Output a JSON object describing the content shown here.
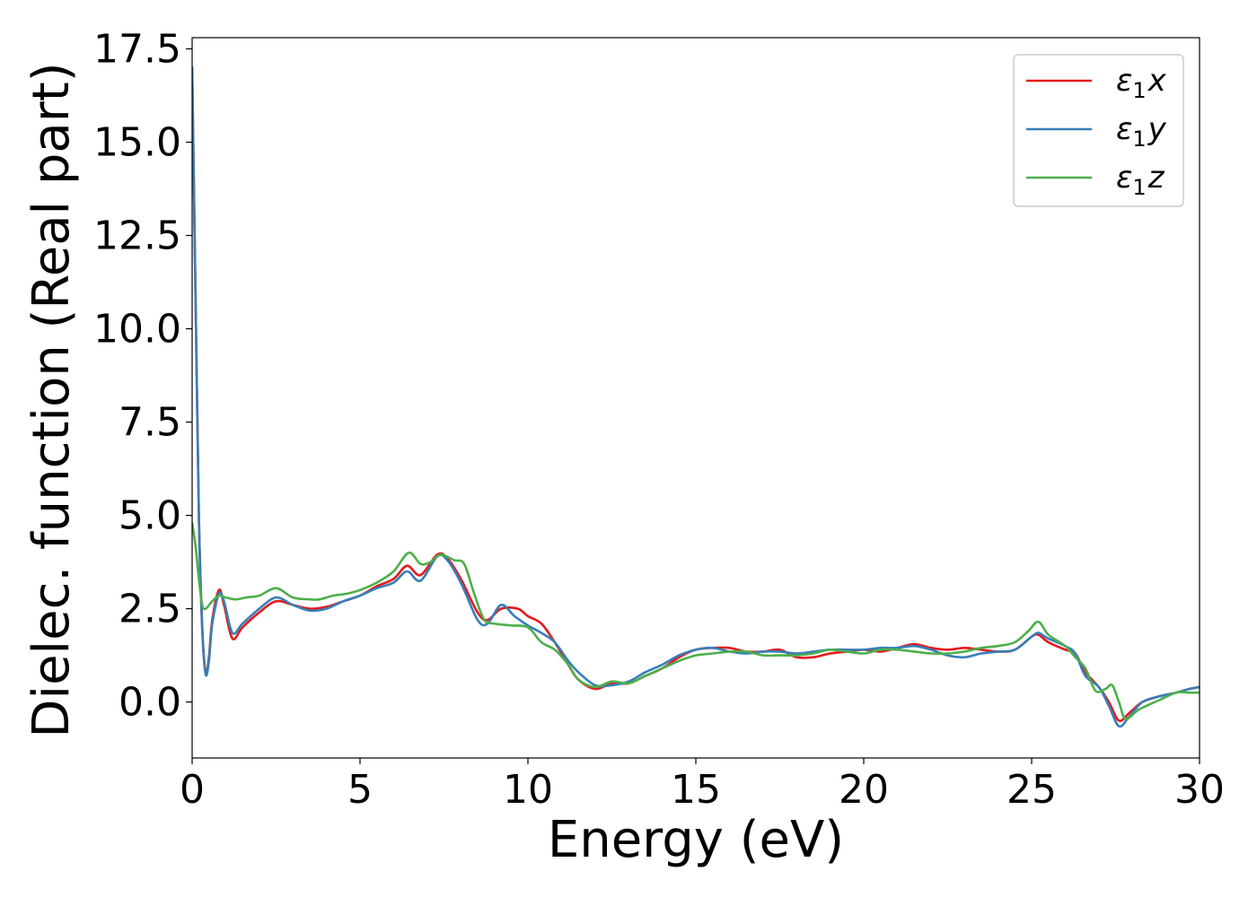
{
  "chart_data": {
    "type": "line",
    "xlabel": "Energy (eV)",
    "ylabel": "Dielec. function (Real part)",
    "xlim": [
      0,
      30
    ],
    "ylim": [
      -1.5,
      17.8
    ],
    "xticks": [
      0,
      5,
      10,
      15,
      20,
      25,
      30
    ],
    "xtick_labels": [
      "0",
      "5",
      "10",
      "15",
      "20",
      "25",
      "30"
    ],
    "yticks": [
      0.0,
      2.5,
      5.0,
      7.5,
      10.0,
      12.5,
      15.0,
      17.5
    ],
    "ytick_labels": [
      "0.0",
      "2.5",
      "5.0",
      "7.5",
      "10.0",
      "12.5",
      "15.0",
      "17.5"
    ],
    "grid": false,
    "legend_position": "top-right",
    "series": [
      {
        "name": "ε1x",
        "name_base": "ε",
        "name_sub": "1",
        "name_suffix": "x",
        "color": "#e41a1c",
        "points": [
          [
            0,
            17.0
          ],
          [
            0.1,
            11.0
          ],
          [
            0.2,
            5.0
          ],
          [
            0.3,
            2.0
          ],
          [
            0.4,
            0.8
          ],
          [
            0.5,
            1.2
          ],
          [
            0.6,
            2.2
          ],
          [
            0.8,
            3.0
          ],
          [
            0.95,
            2.6
          ],
          [
            1.2,
            1.7
          ],
          [
            1.5,
            2.0
          ],
          [
            2.0,
            2.4
          ],
          [
            2.5,
            2.7
          ],
          [
            3.0,
            2.6
          ],
          [
            3.5,
            2.5
          ],
          [
            4.0,
            2.55
          ],
          [
            4.5,
            2.7
          ],
          [
            5.0,
            2.85
          ],
          [
            5.5,
            3.1
          ],
          [
            6.0,
            3.3
          ],
          [
            6.4,
            3.65
          ],
          [
            6.8,
            3.4
          ],
          [
            7.3,
            3.95
          ],
          [
            7.6,
            3.85
          ],
          [
            8.0,
            3.3
          ],
          [
            8.5,
            2.4
          ],
          [
            8.8,
            2.2
          ],
          [
            9.2,
            2.5
          ],
          [
            9.7,
            2.5
          ],
          [
            10.0,
            2.3
          ],
          [
            10.4,
            2.1
          ],
          [
            10.8,
            1.6
          ],
          [
            11.2,
            1.0
          ],
          [
            11.5,
            0.6
          ],
          [
            12.0,
            0.35
          ],
          [
            12.5,
            0.5
          ],
          [
            13.0,
            0.5
          ],
          [
            13.5,
            0.7
          ],
          [
            14.0,
            0.9
          ],
          [
            14.5,
            1.2
          ],
          [
            15.0,
            1.4
          ],
          [
            15.5,
            1.45
          ],
          [
            16.0,
            1.45
          ],
          [
            16.5,
            1.35
          ],
          [
            17.0,
            1.35
          ],
          [
            17.5,
            1.4
          ],
          [
            18.0,
            1.2
          ],
          [
            18.5,
            1.2
          ],
          [
            19.0,
            1.3
          ],
          [
            19.5,
            1.35
          ],
          [
            20.0,
            1.4
          ],
          [
            20.5,
            1.35
          ],
          [
            21.0,
            1.45
          ],
          [
            21.5,
            1.55
          ],
          [
            22.0,
            1.45
          ],
          [
            22.5,
            1.4
          ],
          [
            23.0,
            1.45
          ],
          [
            23.5,
            1.4
          ],
          [
            24.0,
            1.35
          ],
          [
            24.5,
            1.4
          ],
          [
            25.0,
            1.75
          ],
          [
            25.2,
            1.8
          ],
          [
            25.5,
            1.6
          ],
          [
            26.0,
            1.4
          ],
          [
            26.3,
            1.3
          ],
          [
            26.6,
            0.8
          ],
          [
            27.0,
            0.4
          ],
          [
            27.3,
            0.0
          ],
          [
            27.6,
            -0.5
          ],
          [
            27.9,
            -0.3
          ],
          [
            28.3,
            0.0
          ],
          [
            28.8,
            0.15
          ],
          [
            29.3,
            0.25
          ],
          [
            29.7,
            0.35
          ],
          [
            30.0,
            0.4
          ]
        ]
      },
      {
        "name": "ε1y",
        "name_base": "ε",
        "name_sub": "1",
        "name_suffix": "y",
        "color": "#377eb8",
        "points": [
          [
            0,
            17.0
          ],
          [
            0.1,
            11.0
          ],
          [
            0.2,
            5.0
          ],
          [
            0.3,
            2.0
          ],
          [
            0.4,
            0.75
          ],
          [
            0.5,
            1.1
          ],
          [
            0.6,
            2.1
          ],
          [
            0.8,
            2.9
          ],
          [
            0.95,
            2.7
          ],
          [
            1.2,
            1.85
          ],
          [
            1.5,
            2.1
          ],
          [
            2.0,
            2.5
          ],
          [
            2.5,
            2.8
          ],
          [
            3.0,
            2.6
          ],
          [
            3.5,
            2.45
          ],
          [
            4.0,
            2.5
          ],
          [
            4.5,
            2.7
          ],
          [
            5.0,
            2.85
          ],
          [
            5.5,
            3.05
          ],
          [
            6.0,
            3.2
          ],
          [
            6.4,
            3.5
          ],
          [
            6.8,
            3.25
          ],
          [
            7.3,
            3.9
          ],
          [
            7.6,
            3.8
          ],
          [
            8.0,
            3.2
          ],
          [
            8.5,
            2.2
          ],
          [
            8.8,
            2.1
          ],
          [
            9.2,
            2.6
          ],
          [
            9.6,
            2.3
          ],
          [
            10.0,
            2.05
          ],
          [
            10.4,
            1.85
          ],
          [
            10.8,
            1.6
          ],
          [
            11.2,
            1.1
          ],
          [
            11.5,
            0.8
          ],
          [
            12.0,
            0.45
          ],
          [
            12.5,
            0.45
          ],
          [
            13.0,
            0.55
          ],
          [
            13.5,
            0.8
          ],
          [
            14.0,
            1.0
          ],
          [
            14.5,
            1.25
          ],
          [
            15.0,
            1.4
          ],
          [
            15.5,
            1.45
          ],
          [
            16.0,
            1.35
          ],
          [
            16.5,
            1.3
          ],
          [
            17.0,
            1.35
          ],
          [
            17.5,
            1.35
          ],
          [
            18.0,
            1.3
          ],
          [
            18.5,
            1.35
          ],
          [
            19.0,
            1.4
          ],
          [
            19.5,
            1.4
          ],
          [
            20.0,
            1.4
          ],
          [
            20.5,
            1.45
          ],
          [
            21.0,
            1.45
          ],
          [
            21.5,
            1.5
          ],
          [
            22.0,
            1.4
          ],
          [
            22.5,
            1.25
          ],
          [
            23.0,
            1.2
          ],
          [
            23.5,
            1.3
          ],
          [
            24.0,
            1.35
          ],
          [
            24.5,
            1.4
          ],
          [
            25.0,
            1.75
          ],
          [
            25.2,
            1.85
          ],
          [
            25.5,
            1.7
          ],
          [
            26.0,
            1.5
          ],
          [
            26.3,
            1.3
          ],
          [
            26.6,
            0.7
          ],
          [
            27.0,
            0.4
          ],
          [
            27.3,
            -0.1
          ],
          [
            27.6,
            -0.65
          ],
          [
            27.9,
            -0.4
          ],
          [
            28.3,
            0.0
          ],
          [
            28.8,
            0.15
          ],
          [
            29.3,
            0.25
          ],
          [
            29.7,
            0.35
          ],
          [
            30.0,
            0.4
          ]
        ]
      },
      {
        "name": "ε1z",
        "name_base": "ε",
        "name_sub": "1",
        "name_suffix": "z",
        "color": "#4daf4a",
        "points": [
          [
            0,
            4.8
          ],
          [
            0.1,
            4.2
          ],
          [
            0.2,
            3.3
          ],
          [
            0.3,
            2.6
          ],
          [
            0.4,
            2.5
          ],
          [
            0.6,
            2.7
          ],
          [
            0.8,
            2.85
          ],
          [
            1.0,
            2.8
          ],
          [
            1.3,
            2.75
          ],
          [
            1.6,
            2.8
          ],
          [
            2.0,
            2.85
          ],
          [
            2.5,
            3.05
          ],
          [
            3.0,
            2.8
          ],
          [
            3.5,
            2.75
          ],
          [
            3.8,
            2.75
          ],
          [
            4.2,
            2.85
          ],
          [
            4.6,
            2.9
          ],
          [
            5.0,
            3.0
          ],
          [
            5.5,
            3.2
          ],
          [
            6.0,
            3.5
          ],
          [
            6.45,
            4.0
          ],
          [
            6.8,
            3.7
          ],
          [
            7.1,
            3.75
          ],
          [
            7.4,
            3.95
          ],
          [
            7.8,
            3.8
          ],
          [
            8.1,
            3.7
          ],
          [
            8.4,
            2.9
          ],
          [
            8.7,
            2.2
          ],
          [
            9.0,
            2.1
          ],
          [
            9.5,
            2.05
          ],
          [
            10.0,
            2.0
          ],
          [
            10.4,
            1.6
          ],
          [
            10.8,
            1.4
          ],
          [
            11.2,
            1.0
          ],
          [
            11.5,
            0.6
          ],
          [
            12.0,
            0.4
          ],
          [
            12.5,
            0.55
          ],
          [
            13.0,
            0.5
          ],
          [
            13.5,
            0.7
          ],
          [
            14.0,
            0.9
          ],
          [
            14.5,
            1.1
          ],
          [
            15.0,
            1.25
          ],
          [
            15.5,
            1.3
          ],
          [
            16.0,
            1.35
          ],
          [
            16.5,
            1.35
          ],
          [
            17.0,
            1.25
          ],
          [
            17.5,
            1.25
          ],
          [
            18.0,
            1.25
          ],
          [
            18.5,
            1.3
          ],
          [
            19.0,
            1.4
          ],
          [
            19.5,
            1.35
          ],
          [
            20.0,
            1.3
          ],
          [
            20.5,
            1.4
          ],
          [
            21.0,
            1.4
          ],
          [
            21.5,
            1.35
          ],
          [
            22.0,
            1.3
          ],
          [
            22.5,
            1.3
          ],
          [
            23.0,
            1.35
          ],
          [
            23.5,
            1.45
          ],
          [
            24.0,
            1.5
          ],
          [
            24.5,
            1.6
          ],
          [
            24.9,
            1.9
          ],
          [
            25.2,
            2.15
          ],
          [
            25.5,
            1.8
          ],
          [
            26.0,
            1.5
          ],
          [
            26.3,
            1.2
          ],
          [
            26.6,
            0.9
          ],
          [
            26.9,
            0.3
          ],
          [
            27.2,
            0.35
          ],
          [
            27.4,
            0.45
          ],
          [
            27.6,
            0.0
          ],
          [
            27.8,
            -0.45
          ],
          [
            28.2,
            -0.2
          ],
          [
            28.8,
            0.05
          ],
          [
            29.3,
            0.25
          ],
          [
            29.7,
            0.25
          ],
          [
            30.0,
            0.25
          ]
        ]
      }
    ]
  }
}
